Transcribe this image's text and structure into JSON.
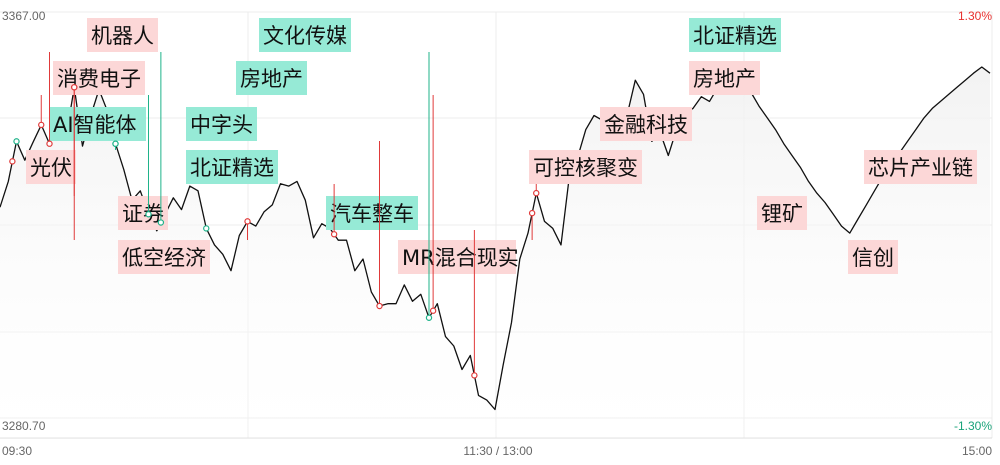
{
  "chart_data": {
    "type": "line",
    "y_axis": {
      "top_value": "3367.00",
      "bottom_value": "3280.70",
      "top_pct": "1.30%",
      "bottom_pct": "-1.30%",
      "ylim": [
        3280.7,
        3367.0
      ]
    },
    "x_ticks": [
      "09:30",
      "11:30 / 13:00",
      "15:00"
    ],
    "grid": true,
    "colors": {
      "line": "#111111",
      "up_tag": "#fcd7d7",
      "down_tag": "#96ead6",
      "up_marker": "#e03a3a",
      "down_marker": "#1fb38a",
      "red_text": "#e8312f",
      "green_text": "#1aa37a"
    },
    "series": [
      {
        "time_index_0_to_240": [
          0,
          2,
          4,
          6,
          8,
          10,
          12,
          14,
          16,
          18,
          20,
          22,
          24,
          26,
          28,
          30,
          32,
          34,
          36,
          38,
          40,
          42,
          44,
          46,
          48,
          50,
          52,
          54,
          56,
          58,
          60,
          62,
          64,
          66,
          68,
          70,
          72,
          74,
          76,
          78,
          80,
          82,
          84,
          86,
          88,
          90,
          92,
          94,
          96,
          98,
          100,
          102,
          104,
          106,
          108,
          110,
          112,
          114,
          116,
          118,
          120,
          122,
          124,
          126,
          128,
          130,
          132,
          134,
          136,
          138,
          140,
          142,
          144,
          146,
          148,
          150,
          152,
          154,
          156,
          158,
          160,
          162,
          164,
          166,
          168,
          170,
          172,
          174,
          176,
          178,
          180,
          182,
          184,
          186,
          188,
          190,
          192,
          194,
          196,
          198,
          200,
          202,
          204,
          206,
          208,
          210,
          212,
          214,
          216,
          218,
          220,
          222,
          224,
          226,
          228,
          230,
          232,
          234,
          236,
          238,
          240
        ],
        "values": [
          3325.5,
          3331.0,
          3339.5,
          3335.5,
          3339.3,
          3343.0,
          3339.0,
          3344.0,
          3340.5,
          3351.0,
          3338.5,
          3345.0,
          3350.5,
          3346.0,
          3339.0,
          3333.5,
          3327.0,
          3329.0,
          3324.0,
          3320.5,
          3324.0,
          3327.5,
          3325.0,
          3330.0,
          3329.0,
          3321.0,
          3317.5,
          3315.5,
          3312.0,
          3319.5,
          3322.5,
          3321.5,
          3324.5,
          3326.0,
          3330.5,
          3330.0,
          3331.0,
          3327.0,
          3319.0,
          3322.0,
          3321.0,
          3318.5,
          3318.5,
          3312.0,
          3314.5,
          3307.5,
          3304.5,
          3305.0,
          3305.0,
          3309.0,
          3305.5,
          3307.0,
          3302.0,
          3305.0,
          3298.0,
          3296.0,
          3291.0,
          3294.0,
          3285.5,
          3284.5,
          3282.5,
          3292.0,
          3301.0,
          3314.5,
          3320.0,
          3328.5,
          3322.5,
          3321.0,
          3317.5,
          3332.0,
          3336.0,
          3342.0,
          3345.0,
          3344.0,
          3341.0,
          3343.5,
          3345.0,
          3352.5,
          3349.5,
          3339.5,
          3341.5,
          3336.5,
          3342.0,
          3345.5,
          3346.5,
          3349.0,
          3348.0,
          3351.0,
          3353.0,
          3354.3,
          3353.0,
          3350.0,
          3347.0,
          3344.5,
          3342.0,
          3339.0,
          3336.5,
          3334.0,
          3331.0,
          3328.5,
          3326.5,
          3324.0,
          3321.5,
          3320.0,
          3323.0,
          3326.0,
          3329.0,
          3332.0,
          3334.5,
          3337.0,
          3339.5,
          3342.0,
          3344.5,
          3346.5,
          3348.0,
          3349.5,
          3351.0,
          3352.5,
          3354.0,
          3355.3,
          3354.0
        ]
      }
    ],
    "tags": [
      {
        "label": "光伏",
        "kind": "up",
        "t": 3
      },
      {
        "label": "AI智能体",
        "kind": "down",
        "t": 4
      },
      {
        "label": "消费电子",
        "kind": "up",
        "t": 10
      },
      {
        "label": "机器人",
        "kind": "up",
        "t": 12
      },
      {
        "label": "证券",
        "kind": "up",
        "t": 18
      },
      {
        "label": "低空经济",
        "kind": "up",
        "t": 18
      },
      {
        "label": "中字头",
        "kind": "down",
        "t": 28
      },
      {
        "label": "北证精选",
        "kind": "down",
        "t": 28
      },
      {
        "label": "房地产",
        "kind": "down",
        "t": 36
      },
      {
        "label": "文化传媒",
        "kind": "down",
        "t": 39
      },
      {
        "label": "汽车整车",
        "kind": "down",
        "t": 50
      },
      {
        "label": "MR混合现实",
        "kind": "up",
        "t": 60
      },
      {
        "label": "可控核聚变",
        "kind": "up",
        "t": 81
      },
      {
        "label": "金融科技",
        "kind": "up",
        "t": 92
      },
      {
        "label": "北证精选",
        "kind": "down",
        "t": 104
      },
      {
        "label": "房地产",
        "kind": "up",
        "t": 105
      },
      {
        "label": "锂矿",
        "kind": "up",
        "t": 115
      },
      {
        "label": "芯片产业链",
        "kind": "up",
        "t": 130
      },
      {
        "label": "信创",
        "kind": "up",
        "t": 129
      }
    ]
  }
}
